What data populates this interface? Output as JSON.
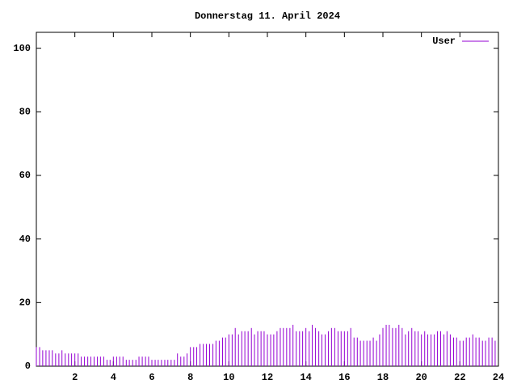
{
  "chart_data": {
    "type": "impulse",
    "title": "Donnerstag 11. April 2024",
    "series": [
      {
        "name": "User",
        "color": "#9400d3",
        "x": [
          0,
          0.17,
          0.33,
          0.5,
          0.67,
          0.83,
          1,
          1.17,
          1.33,
          1.5,
          1.67,
          1.83,
          2,
          2.17,
          2.33,
          2.5,
          2.67,
          2.83,
          3,
          3.17,
          3.33,
          3.5,
          3.67,
          3.83,
          4,
          4.17,
          4.33,
          4.5,
          4.67,
          4.83,
          5,
          5.17,
          5.33,
          5.5,
          5.67,
          5.83,
          6,
          6.17,
          6.33,
          6.5,
          6.67,
          6.83,
          7,
          7.17,
          7.33,
          7.5,
          7.67,
          7.83,
          8,
          8.17,
          8.33,
          8.5,
          8.67,
          8.83,
          9,
          9.17,
          9.33,
          9.5,
          9.67,
          9.83,
          10,
          10.17,
          10.33,
          10.5,
          10.67,
          10.83,
          11,
          11.17,
          11.33,
          11.5,
          11.67,
          11.83,
          12,
          12.17,
          12.33,
          12.5,
          12.67,
          12.83,
          13,
          13.17,
          13.33,
          13.5,
          13.67,
          13.83,
          14,
          14.17,
          14.33,
          14.5,
          14.67,
          14.83,
          15,
          15.17,
          15.33,
          15.5,
          15.67,
          15.83,
          16,
          16.17,
          16.33,
          16.5,
          16.67,
          16.83,
          17,
          17.17,
          17.33,
          17.5,
          17.67,
          17.83,
          18,
          18.17,
          18.33,
          18.5,
          18.67,
          18.83,
          19,
          19.17,
          19.33,
          19.5,
          19.67,
          19.83,
          20,
          20.17,
          20.33,
          20.5,
          20.67,
          20.83,
          21,
          21.17,
          21.33,
          21.5,
          21.67,
          21.83,
          22,
          22.17,
          22.33,
          22.5,
          22.67,
          22.83,
          23,
          23.17,
          23.33,
          23.5,
          23.67,
          23.83
        ],
        "values": [
          6,
          6,
          5,
          5,
          5,
          5,
          4,
          4,
          5,
          4,
          4,
          4,
          4,
          4,
          3,
          3,
          3,
          3,
          3,
          3,
          3,
          3,
          2,
          2,
          3,
          3,
          3,
          3,
          2,
          2,
          2,
          2,
          3,
          3,
          3,
          3,
          2,
          2,
          2,
          2,
          2,
          2,
          2,
          2,
          4,
          3,
          3,
          4,
          6,
          6,
          6,
          7,
          7,
          7,
          7,
          7,
          8,
          8,
          9,
          9,
          10,
          10,
          12,
          10,
          11,
          11,
          11,
          12,
          10,
          11,
          11,
          11,
          10,
          10,
          10,
          11,
          12,
          12,
          12,
          12,
          13,
          11,
          11,
          11,
          12,
          11,
          13,
          12,
          11,
          10,
          10,
          11,
          12,
          12,
          11,
          11,
          11,
          11,
          12,
          9,
          9,
          8,
          8,
          8,
          8,
          9,
          8,
          10,
          12,
          13,
          13,
          12,
          12,
          13,
          12,
          10,
          11,
          12,
          11,
          11,
          10,
          11,
          10,
          10,
          10,
          11,
          11,
          10,
          11,
          10,
          9,
          9,
          8,
          8,
          9,
          9,
          10,
          9,
          9,
          8,
          8,
          9,
          9,
          8
        ]
      }
    ],
    "xlim": [
      0,
      24
    ],
    "xticks": [
      2,
      4,
      6,
      8,
      10,
      12,
      14,
      16,
      18,
      20,
      22,
      24
    ],
    "ylim": [
      0,
      105
    ],
    "yticks": [
      0,
      20,
      40,
      60,
      80,
      100
    ],
    "legend": "top-right"
  }
}
